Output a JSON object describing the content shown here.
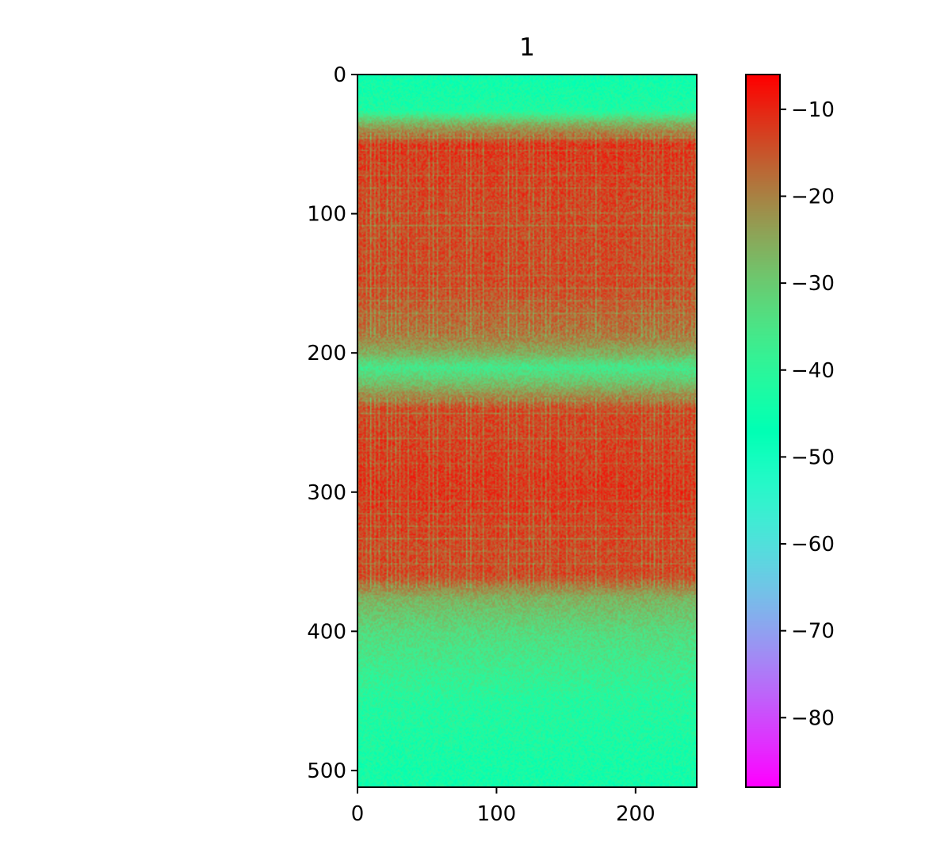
{
  "chart_data": {
    "type": "heatmap",
    "title": "1",
    "xlabel": "",
    "ylabel": "",
    "colormap": "rainbow",
    "image_shape": {
      "rows": 512,
      "cols": 244
    },
    "xlim": [
      0,
      244
    ],
    "ylim": [
      512,
      0
    ],
    "x_ticks": [
      0,
      100,
      200
    ],
    "x_tick_labels": [
      "0",
      "100",
      "200"
    ],
    "y_ticks": [
      0,
      100,
      200,
      300,
      400,
      500
    ],
    "y_tick_labels": [
      "0",
      "100",
      "200",
      "300",
      "400",
      "500"
    ],
    "colorbar": {
      "range": [
        -88,
        -6
      ],
      "ticks": [
        -10,
        -20,
        -30,
        -40,
        -50,
        -60,
        -70,
        -80
      ],
      "tick_labels": [
        "−10",
        "−20",
        "−30",
        "−40",
        "−50",
        "−60",
        "−70",
        "−80"
      ]
    },
    "row_profile": {
      "row": [
        0,
        25,
        35,
        50,
        100,
        150,
        185,
        200,
        210,
        222,
        240,
        300,
        340,
        360,
        375,
        400,
        450,
        512
      ],
      "level_db": [
        -45,
        -42,
        -26,
        -11,
        -13,
        -13,
        -18,
        -26,
        -36,
        -28,
        -13,
        -11,
        -13,
        -13,
        -26,
        -33,
        -41,
        -44
      ]
    },
    "noise_db": 4
  }
}
